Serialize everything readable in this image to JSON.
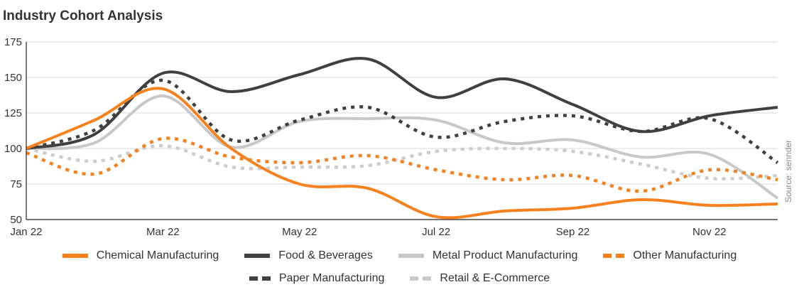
{
  "title": "Industry Cohort Analysis",
  "source": "Source: sennder",
  "chart_data": {
    "type": "line",
    "title": "Industry Cohort Analysis",
    "xlabel": "",
    "ylabel": "",
    "x": [
      "Jan 22",
      "Feb 22",
      "Mar 22",
      "Apr 22",
      "May 22",
      "Jun 22",
      "Jul 22",
      "Aug 22",
      "Sep 22",
      "Oct 22",
      "Nov 22",
      "Dec 22"
    ],
    "x_tick_labels": [
      "Jan 22",
      "Mar 22",
      "May 22",
      "Jul 22",
      "Sep 22",
      "Nov 22"
    ],
    "y_ticks": [
      50,
      75,
      100,
      125,
      150,
      175
    ],
    "ylim": [
      50,
      175
    ],
    "grid": true,
    "legend_position": "bottom",
    "series": [
      {
        "name": "Chemical Manufacturing",
        "color": "#F5821F",
        "style": "solid",
        "values": [
          100,
          120,
          142,
          100,
          75,
          72,
          52,
          56,
          58,
          64,
          60,
          61
        ]
      },
      {
        "name": "Food & Beverages",
        "color": "#404040",
        "style": "solid",
        "values": [
          100,
          110,
          153,
          140,
          152,
          163,
          136,
          149,
          131,
          112,
          123,
          129
        ]
      },
      {
        "name": "Metal Product Manufacturing",
        "color": "#C8C8C8",
        "style": "solid",
        "values": [
          100,
          104,
          137,
          101,
          119,
          121,
          120,
          104,
          106,
          94,
          96,
          65
        ]
      },
      {
        "name": "Other Manufacturing",
        "color": "#F5821F",
        "style": "dotted",
        "values": [
          97,
          82,
          107,
          94,
          90,
          95,
          85,
          78,
          81,
          70,
          85,
          78
        ]
      },
      {
        "name": "Paper Manufacturing",
        "color": "#404040",
        "style": "dotted",
        "values": [
          100,
          113,
          148,
          106,
          120,
          129,
          108,
          119,
          123,
          112,
          121,
          90
        ]
      },
      {
        "name": "Retail & E-Commerce",
        "color": "#CCCCCC",
        "style": "dotted",
        "values": [
          100,
          91,
          102,
          87,
          87,
          88,
          98,
          100,
          98,
          89,
          79,
          81
        ]
      }
    ]
  }
}
